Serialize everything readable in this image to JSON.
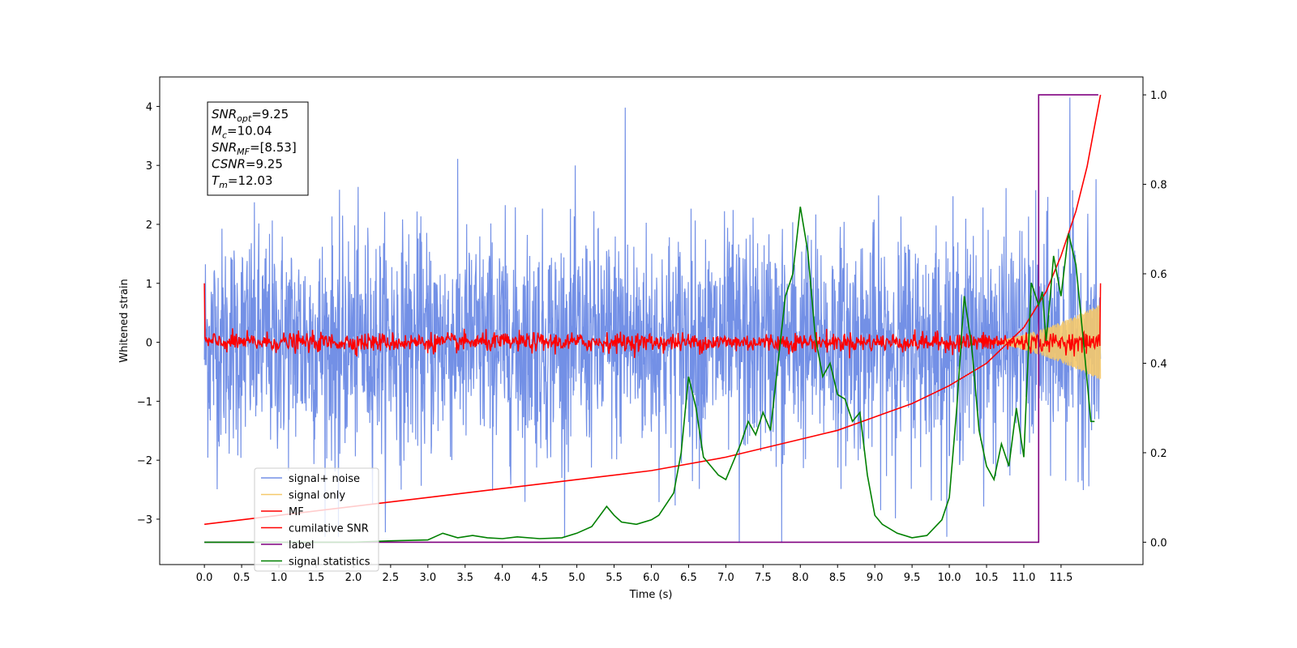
{
  "chart_data": {
    "type": "line",
    "xlabel": "Time (s)",
    "ylabel": "Whitened strain",
    "xlim": [
      -0.6,
      12.6
    ],
    "ylim": [
      -3.77,
      4.5
    ],
    "y2lim": [
      -0.05,
      1.04
    ],
    "x_ticks": [
      "0.0",
      "0.5",
      "1.0",
      "1.5",
      "2.0",
      "2.5",
      "3.0",
      "3.5",
      "4.0",
      "4.5",
      "5.0",
      "5.5",
      "6.0",
      "6.5",
      "7.0",
      "7.5",
      "8.0",
      "8.5",
      "9.0",
      "9.5",
      "10.0",
      "10.5",
      "11.0",
      "11.5"
    ],
    "y_ticks": [
      "−3",
      "−2",
      "−1",
      "0",
      "1",
      "2",
      "3",
      "4"
    ],
    "y2_ticks": [
      "0.0",
      "0.2",
      "0.4",
      "0.6",
      "0.8",
      "1.0"
    ],
    "grid": false,
    "legend_position": "lower-left",
    "annotation": {
      "lines": [
        {
          "var": "SNR",
          "sub": "opt",
          "value": "=9.25"
        },
        {
          "var": "M",
          "sub": "c",
          "value": "=10.04"
        },
        {
          "var": "SNR",
          "sub": "MF",
          "value": "=[8.53]"
        },
        {
          "var": "CSNR",
          "sub": "",
          "value": "=9.25"
        },
        {
          "var": "T",
          "sub": "m",
          "value": "=12.03"
        }
      ]
    },
    "series": [
      {
        "name": "signal+ noise",
        "color": "#7390e6",
        "axis": "left",
        "style": "noise",
        "t_range": [
          0,
          12.03
        ],
        "std": 0.95,
        "notable_peaks": [
          [
            5.65,
            3.98
          ],
          [
            7.18,
            -3.4
          ],
          [
            7.75,
            -3.4
          ],
          [
            11.62,
            4.15
          ],
          [
            1.8,
            -3.3
          ]
        ]
      },
      {
        "name": "signal only",
        "color": "#f5c96b",
        "axis": "left",
        "style": "chirp",
        "t_range": [
          10.4,
          12.03
        ],
        "amplitude_end": 0.65
      },
      {
        "name": "MF",
        "color": "#ff0000",
        "axis": "left",
        "style": "noise",
        "t_range": [
          0,
          12.03
        ],
        "std": 0.08,
        "end_points": [
          [
            0.0,
            1.0
          ],
          [
            12.03,
            1.0
          ]
        ]
      },
      {
        "name": "cumilative SNR",
        "color": "#ff0000",
        "axis": "right",
        "style": "line",
        "x": [
          0.0,
          1.0,
          2.0,
          3.0,
          4.0,
          5.0,
          6.0,
          7.0,
          8.0,
          8.5,
          9.0,
          9.5,
          10.0,
          10.5,
          11.0,
          11.3,
          11.5,
          11.7,
          11.85,
          11.95,
          12.03
        ],
        "values": [
          0.04,
          0.06,
          0.08,
          0.1,
          0.12,
          0.14,
          0.16,
          0.19,
          0.23,
          0.25,
          0.28,
          0.31,
          0.35,
          0.4,
          0.48,
          0.56,
          0.64,
          0.74,
          0.84,
          0.93,
          1.0
        ]
      },
      {
        "name": "label",
        "color": "#800080",
        "axis": "right",
        "style": "line",
        "x": [
          0.0,
          11.2,
          11.2,
          12.0
        ],
        "values": [
          0.0,
          0.0,
          1.0,
          1.0
        ]
      },
      {
        "name": "signal statistics",
        "color": "#008000",
        "axis": "right",
        "style": "line",
        "x": [
          0.0,
          0.5,
          1.0,
          1.5,
          2.0,
          2.5,
          3.0,
          3.2,
          3.4,
          3.6,
          3.8,
          4.0,
          4.2,
          4.5,
          4.8,
          5.0,
          5.2,
          5.4,
          5.5,
          5.6,
          5.8,
          6.0,
          6.1,
          6.3,
          6.4,
          6.5,
          6.6,
          6.7,
          6.8,
          6.9,
          7.0,
          7.1,
          7.2,
          7.3,
          7.4,
          7.5,
          7.6,
          7.7,
          7.8,
          7.9,
          8.0,
          8.1,
          8.2,
          8.3,
          8.4,
          8.5,
          8.6,
          8.7,
          8.8,
          8.9,
          9.0,
          9.1,
          9.3,
          9.5,
          9.7,
          9.9,
          10.0,
          10.1,
          10.2,
          10.3,
          10.4,
          10.5,
          10.6,
          10.7,
          10.8,
          10.9,
          11.0,
          11.1,
          11.2,
          11.25,
          11.3,
          11.35,
          11.4,
          11.5,
          11.6,
          11.7,
          11.8,
          11.9,
          11.95
        ],
        "values": [
          0.0,
          0.0,
          0.0,
          0.0,
          0.0,
          0.003,
          0.005,
          0.02,
          0.01,
          0.015,
          0.01,
          0.008,
          0.012,
          0.008,
          0.01,
          0.02,
          0.035,
          0.08,
          0.06,
          0.045,
          0.04,
          0.05,
          0.06,
          0.11,
          0.2,
          0.37,
          0.3,
          0.19,
          0.17,
          0.15,
          0.14,
          0.18,
          0.22,
          0.27,
          0.24,
          0.29,
          0.25,
          0.4,
          0.55,
          0.6,
          0.75,
          0.65,
          0.46,
          0.37,
          0.4,
          0.33,
          0.32,
          0.27,
          0.29,
          0.15,
          0.06,
          0.04,
          0.02,
          0.01,
          0.015,
          0.05,
          0.1,
          0.3,
          0.55,
          0.44,
          0.25,
          0.17,
          0.14,
          0.22,
          0.17,
          0.3,
          0.19,
          0.58,
          0.53,
          0.56,
          0.45,
          0.54,
          0.64,
          0.55,
          0.69,
          0.62,
          0.45,
          0.27,
          0.27
        ]
      }
    ]
  }
}
